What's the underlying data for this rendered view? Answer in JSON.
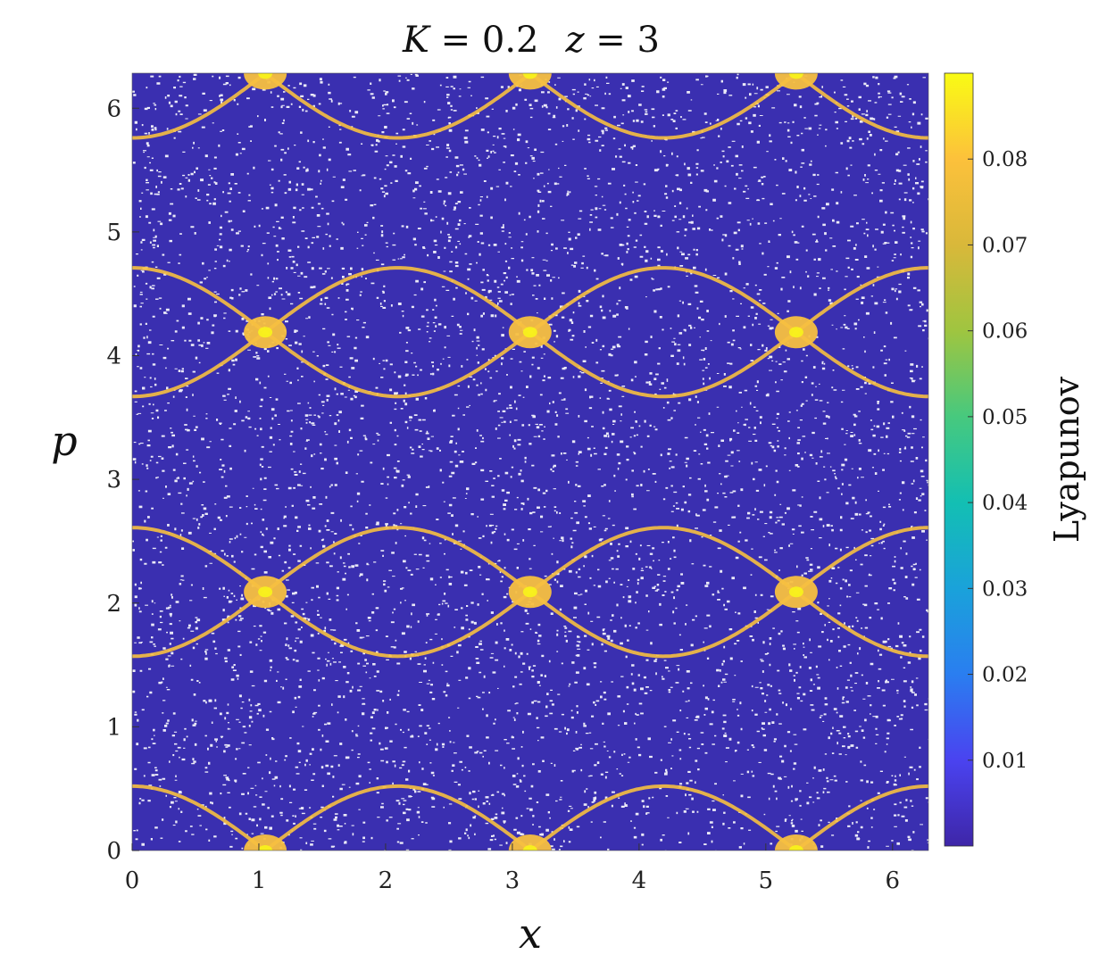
{
  "chart_data": {
    "type": "scatter",
    "title_parts": [
      "K = 0.2",
      "z = 3"
    ],
    "xlabel": "x",
    "ylabel": "p",
    "xlim": [
      0,
      6.2832
    ],
    "ylim": [
      0,
      6.2832
    ],
    "x_ticks": [
      0,
      1,
      2,
      3,
      4,
      5,
      6
    ],
    "y_ticks": [
      0,
      1,
      2,
      3,
      4,
      5,
      6
    ],
    "background_color": "#3a2fb0",
    "grid": false,
    "colorbar": {
      "label": "Lyapunov",
      "range": [
        0,
        0.09
      ],
      "ticks": [
        "0.01",
        "0.02",
        "0.03",
        "0.04",
        "0.05",
        "0.06",
        "0.07",
        "0.08"
      ],
      "colormap": [
        "#3e26a8",
        "#4a43f0",
        "#2a7ef0",
        "#1aa2da",
        "#13bfb3",
        "#47c97e",
        "#9fc540",
        "#d9b83a",
        "#fcc13b",
        "#f9fb14"
      ]
    },
    "chaotic_layer_color": "#f7c040",
    "separatrix_layers": [
      {
        "p_center": 0.0,
        "amplitude": 0.52,
        "x_cross": [
          1.05,
          3.14,
          5.24
        ]
      },
      {
        "p_center": 2.09,
        "amplitude": 0.52,
        "x_cross": [
          1.05,
          3.14,
          5.24
        ]
      },
      {
        "p_center": 4.19,
        "amplitude": 0.52,
        "x_cross": [
          1.05,
          3.14,
          5.24
        ]
      },
      {
        "p_center": 6.28,
        "amplitude": 0.52,
        "x_cross": [
          1.05,
          3.14,
          5.24
        ]
      }
    ],
    "hyperbolic_points": [
      {
        "x": 1.05,
        "p": 0.0
      },
      {
        "x": 3.14,
        "p": 0.0
      },
      {
        "x": 5.24,
        "p": 0.0
      },
      {
        "x": 1.05,
        "p": 2.09
      },
      {
        "x": 3.14,
        "p": 2.09
      },
      {
        "x": 5.24,
        "p": 2.09
      },
      {
        "x": 1.05,
        "p": 4.19
      },
      {
        "x": 3.14,
        "p": 4.19
      },
      {
        "x": 5.24,
        "p": 4.19
      },
      {
        "x": 1.05,
        "p": 6.28
      },
      {
        "x": 3.14,
        "p": 6.28
      },
      {
        "x": 5.24,
        "p": 6.28
      }
    ]
  }
}
